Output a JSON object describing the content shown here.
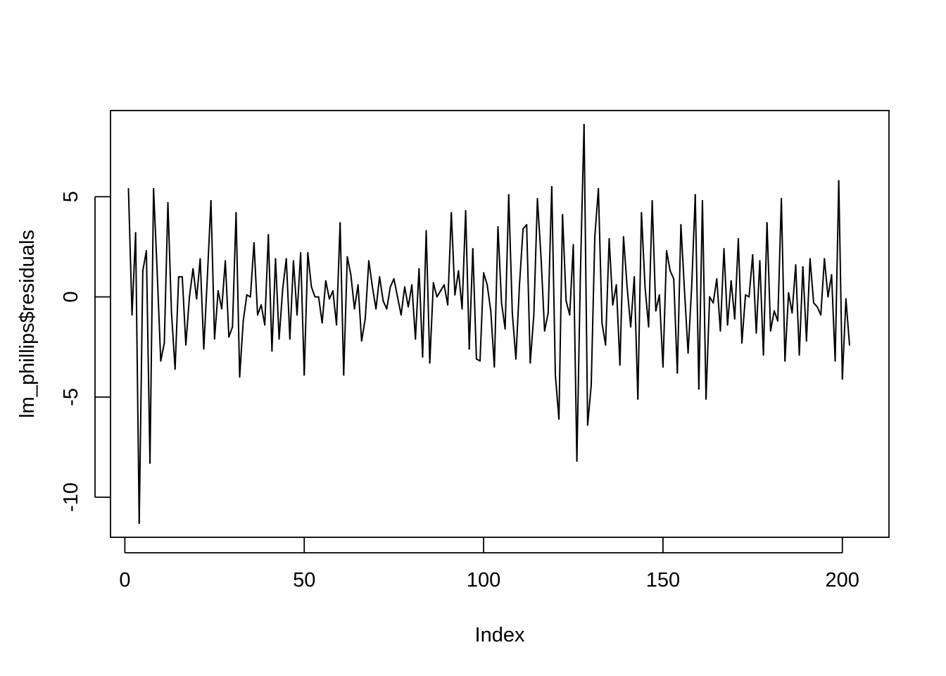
{
  "chart_data": {
    "type": "line",
    "title": "",
    "xlabel": "Index",
    "ylabel": "lm_phillips$residuals",
    "xlim": [
      -4,
      213
    ],
    "ylim": [
      -12.0,
      9.3
    ],
    "xticks": [
      0,
      50,
      100,
      150,
      200
    ],
    "xtick_labels": [
      "0",
      "50",
      "100",
      "150",
      "200"
    ],
    "yticks": [
      -10,
      -5,
      0,
      5
    ],
    "ytick_labels": [
      "-10",
      "-5",
      "0",
      "5"
    ],
    "grid": false,
    "legend": "none",
    "line_color": "#000000",
    "x_start": 1,
    "values": [
      5.4,
      -0.9,
      3.2,
      -11.3,
      1.3,
      2.3,
      -8.3,
      5.4,
      1.3,
      -3.2,
      -2.3,
      4.7,
      -0.8,
      -3.6,
      1.0,
      1.0,
      -2.4,
      0.0,
      1.4,
      -0.1,
      1.9,
      -2.6,
      1.0,
      4.8,
      -2.1,
      0.3,
      -0.6,
      1.8,
      -2.0,
      -1.5,
      4.2,
      -4.0,
      -1.2,
      0.1,
      0.0,
      2.7,
      -0.9,
      -0.4,
      -1.4,
      3.1,
      -2.7,
      1.9,
      -2.1,
      0.4,
      1.9,
      -2.1,
      1.8,
      -0.9,
      2.2,
      -3.9,
      2.2,
      0.5,
      0.0,
      0.0,
      -1.3,
      0.8,
      -0.1,
      0.3,
      -1.4,
      3.7,
      -3.9,
      2.0,
      1.1,
      -0.6,
      0.6,
      -2.2,
      -1.1,
      1.8,
      0.5,
      -0.6,
      1.0,
      -0.2,
      -0.6,
      0.5,
      0.9,
      0.0,
      -0.9,
      0.5,
      -0.5,
      0.6,
      -2.1,
      1.4,
      -3.0,
      3.3,
      -3.3,
      0.7,
      0.0,
      0.3,
      0.6,
      -0.4,
      4.2,
      0.1,
      1.3,
      -0.6,
      4.3,
      -2.6,
      2.4,
      -3.1,
      -3.2,
      1.2,
      0.6,
      -0.7,
      -3.5,
      3.5,
      -0.3,
      -1.6,
      5.1,
      -0.8,
      -3.1,
      0.6,
      3.4,
      3.6,
      -3.3,
      -0.9,
      4.9,
      2.0,
      -1.7,
      -0.8,
      5.5,
      -3.9,
      -6.1,
      4.1,
      -0.2,
      -0.9,
      2.6,
      -8.2,
      1.3,
      8.6,
      -6.4,
      -4.4,
      3.0,
      5.4,
      -1.3,
      -2.4,
      2.9,
      -0.4,
      0.6,
      -3.4,
      3.0,
      0.5,
      -1.5,
      1.0,
      -5.1,
      4.2,
      0.5,
      -1.5,
      4.8,
      -0.7,
      0.1,
      -3.5,
      2.3,
      1.3,
      0.9,
      -3.8,
      3.6,
      0.3,
      -2.8,
      0.5,
      5.1,
      -4.6,
      4.8,
      -5.1,
      0.0,
      -0.3,
      0.9,
      -1.7,
      2.4,
      -1.4,
      0.8,
      -1.1,
      2.9,
      -2.3,
      0.1,
      0.0,
      2.1,
      -1.8,
      1.8,
      -2.9,
      3.7,
      -1.7,
      -0.7,
      -1.2,
      4.9,
      -3.2,
      0.2,
      -0.8,
      1.6,
      -2.9,
      1.5,
      -2.2,
      1.9,
      -0.3,
      -0.5,
      -0.9,
      1.9,
      0.0,
      1.1,
      -3.2,
      5.8,
      -4.1,
      -0.1,
      -2.4
    ]
  }
}
